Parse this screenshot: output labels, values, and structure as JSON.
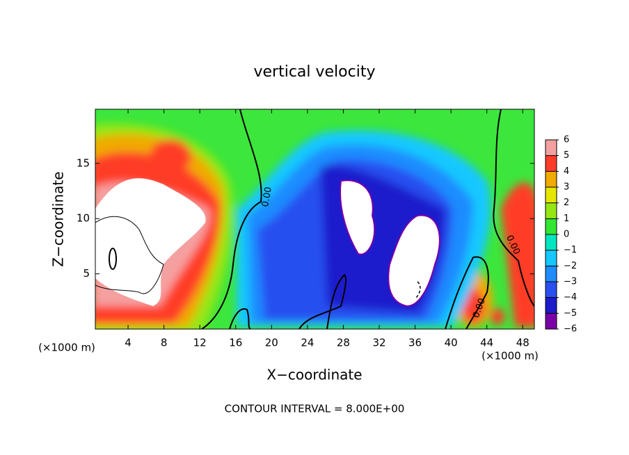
{
  "chart_data": {
    "type": "contour",
    "title": "vertical velocity",
    "x_label": "X−coordinate",
    "y_label": "Z−coordinate",
    "x_unit_labels": [
      "(×1000 m)",
      "(×1000 m)"
    ],
    "footer": "CONTOUR INTERVAL = 8.000E+00",
    "xlim": [
      0.35,
      49.3
    ],
    "ylim": [
      0,
      19.9
    ],
    "xticks": [
      4,
      8,
      12,
      16,
      20,
      24,
      28,
      32,
      36,
      40,
      44,
      48
    ],
    "yticks": [
      5,
      10,
      15
    ],
    "contour_labels": [
      "0.00",
      "0.00",
      "0.00"
    ],
    "colorbar_lim": [
      -6,
      6
    ],
    "colorbar_ticks": [
      {
        "value": -6,
        "label": "−6"
      },
      {
        "value": -5,
        "label": "−5"
      },
      {
        "value": -4,
        "label": "−4"
      },
      {
        "value": -3,
        "label": "−3"
      },
      {
        "value": -2,
        "label": "−2"
      },
      {
        "value": -1,
        "label": "−1"
      },
      0,
      1,
      2,
      3,
      4,
      5,
      6
    ],
    "colorbar_colors": [
      "#7a00a8",
      "#1c1ccc",
      "#2850f0",
      "#1e8cff",
      "#14c8ff",
      "#00e6c0",
      "#32e632",
      "#96e614",
      "#e6e600",
      "#f0aa00",
      "#ff3c28",
      "#f5a0a0"
    ]
  }
}
